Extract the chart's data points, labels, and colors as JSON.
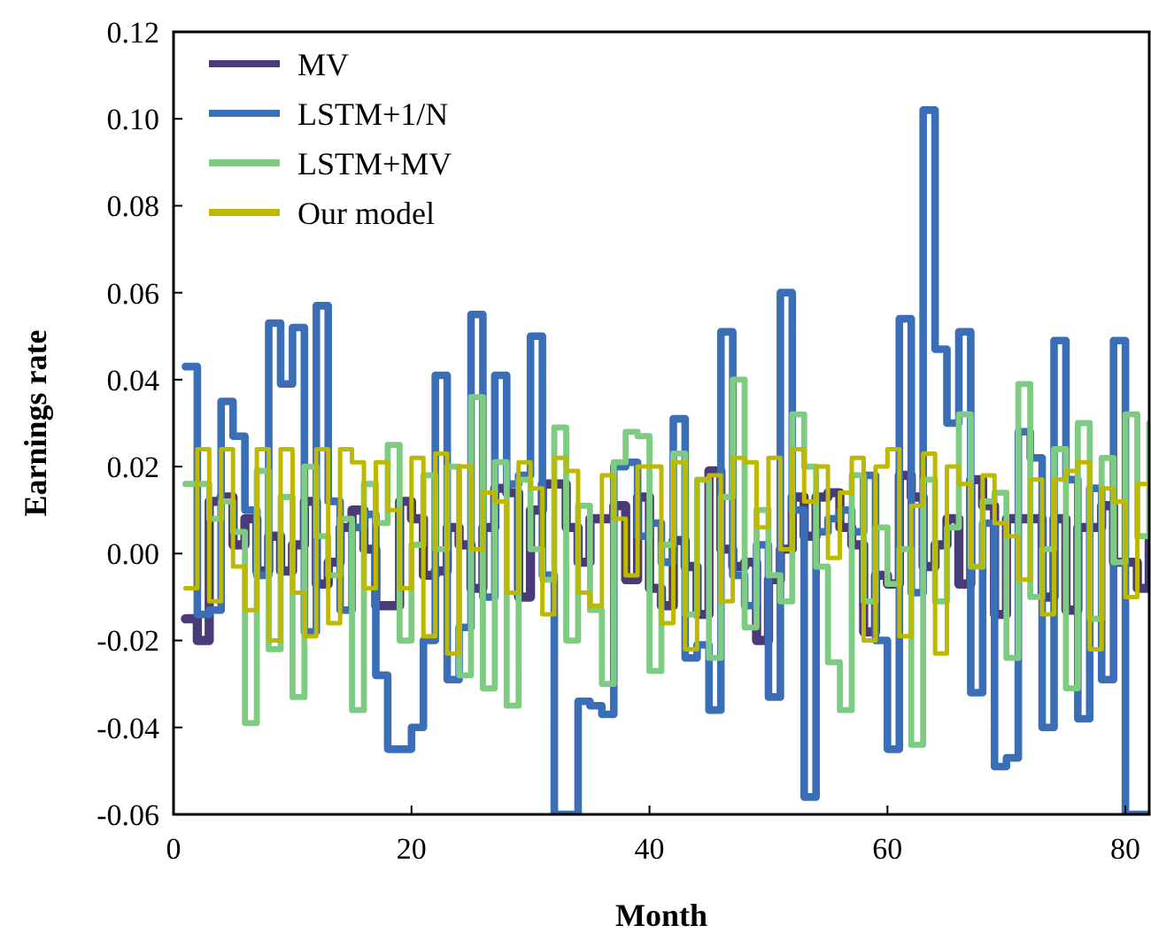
{
  "chart_data": {
    "type": "step",
    "xlabel": "Month",
    "ylabel": "Earnings rate",
    "x": [
      1,
      2,
      3,
      4,
      5,
      6,
      7,
      8,
      9,
      10,
      11,
      12,
      13,
      14,
      15,
      16,
      17,
      18,
      19,
      20,
      21,
      22,
      23,
      24,
      25,
      26,
      27,
      28,
      29,
      30,
      31,
      32,
      33,
      34,
      35,
      36,
      37,
      38,
      39,
      40,
      41,
      42,
      43,
      44,
      45,
      46,
      47,
      48,
      49,
      50,
      51,
      52,
      53,
      54,
      55,
      56,
      57,
      58,
      59,
      60,
      61,
      62,
      63,
      64,
      65,
      66,
      67,
      68,
      69,
      70,
      71,
      72,
      73,
      74,
      75,
      76,
      77,
      78,
      79,
      80,
      81,
      82
    ],
    "xlim": [
      0,
      82
    ],
    "xticks": [
      0,
      20,
      40,
      60,
      80
    ],
    "ylim": [
      -0.06,
      0.12
    ],
    "yticks": [
      {
        "value": -0.06,
        "label": "-0.06"
      },
      {
        "value": -0.04,
        "label": "-0.04"
      },
      {
        "value": -0.02,
        "label": "-0.02"
      },
      {
        "value": 0,
        "label": "0.00"
      },
      {
        "value": 0.02,
        "label": "0.02"
      },
      {
        "value": 0.04,
        "label": "0.04"
      },
      {
        "value": 0.06,
        "label": "0.06"
      },
      {
        "value": 0.08,
        "label": "0.08"
      },
      {
        "value": 0.1,
        "label": "0.10"
      },
      {
        "value": 0.12,
        "label": "0.12"
      }
    ],
    "grid": false,
    "legend": "top left",
    "line_style": "solid",
    "marker": "none",
    "series": [
      {
        "name": "MV",
        "color": "#4b3a78",
        "values": [
          -0.015,
          -0.02,
          0.012,
          0.013,
          0.002,
          0.008,
          -0.004,
          0.004,
          -0.004,
          0.002,
          0.012,
          -0.007,
          -0.002,
          0.006,
          0.01,
          0.001,
          -0.012,
          -0.012,
          0.012,
          0.008,
          -0.005,
          -0.004,
          0.006,
          0.002,
          -0.008,
          0.006,
          0.015,
          0.014,
          -0.01,
          0.01,
          0.016,
          0.016,
          0.006,
          -0.002,
          0.008,
          0.008,
          0.011,
          -0.006,
          0.013,
          -0.008,
          -0.012,
          0.003,
          -0.003,
          -0.014,
          0.019,
          0.001,
          -0.003,
          -0.002,
          -0.02,
          -0.006,
          0.001,
          0.013,
          0.004,
          0.013,
          0.014,
          0.006,
          0.002,
          -0.018,
          -0.005,
          -0.007,
          0.018,
          0.013,
          -0.003,
          0.002,
          0.008,
          -0.007,
          0.017,
          0.011,
          -0.014,
          0.008,
          0.008,
          0.008,
          -0.01,
          0.008,
          -0.013,
          0.006,
          0.006,
          0.011,
          -0.002,
          -0.002,
          -0.008,
          0.003
        ]
      },
      {
        "name": "LSTM+1/N",
        "color": "#3a6fb8",
        "values": [
          0.043,
          -0.014,
          -0.013,
          0.035,
          0.027,
          0.01,
          -0.005,
          0.053,
          0.039,
          0.052,
          -0.018,
          0.057,
          0.012,
          -0.013,
          0.006,
          0.009,
          -0.028,
          -0.045,
          -0.045,
          -0.04,
          -0.02,
          0.041,
          -0.029,
          -0.017,
          0.055,
          -0.01,
          0.041,
          0.016,
          0.018,
          0.05,
          -0.005,
          -0.06,
          -0.06,
          -0.034,
          -0.035,
          -0.037,
          0.02,
          0.021,
          0.004,
          0.007,
          -0.002,
          0.031,
          -0.024,
          -0.021,
          -0.036,
          0.051,
          -0.005,
          -0.012,
          0.002,
          -0.033,
          0.06,
          0.01,
          -0.056,
          0.005,
          0.008,
          0.01,
          0.005,
          0.018,
          -0.02,
          -0.045,
          0.054,
          -0.009,
          0.102,
          0.047,
          0.03,
          0.051,
          -0.032,
          0.007,
          -0.049,
          -0.047,
          0.028,
          0.022,
          -0.04,
          0.049,
          0.017,
          -0.038,
          0.015,
          -0.029,
          0.049,
          -0.06,
          -0.06,
          -0.06
        ]
      },
      {
        "name": "LSTM+MV",
        "color": "#7ecb82",
        "values": [
          0.016,
          0.016,
          0.008,
          0.012,
          0.005,
          -0.039,
          0.019,
          -0.022,
          0.013,
          -0.033,
          0.02,
          0.004,
          -0.005,
          0.008,
          -0.036,
          0.016,
          0.007,
          0.025,
          -0.02,
          0.002,
          0.018,
          0.001,
          0.02,
          -0.028,
          0.036,
          -0.031,
          0.021,
          -0.035,
          0.017,
          0.001,
          -0.006,
          0.029,
          -0.02,
          0.011,
          -0.013,
          -0.03,
          0.021,
          0.028,
          0.027,
          -0.027,
          0.002,
          0.023,
          -0.014,
          0.017,
          -0.024,
          0.013,
          0.04,
          -0.017,
          0.01,
          -0.005,
          -0.011,
          0.032,
          0.02,
          -0.003,
          -0.025,
          -0.036,
          0.018,
          -0.011,
          0.006,
          -0.007,
          0.001,
          -0.044,
          0.017,
          -0.011,
          0.006,
          0.032,
          -0.003,
          0.012,
          0.014,
          -0.024,
          0.039,
          -0.01,
          0.001,
          0.024,
          -0.031,
          0.03,
          -0.015,
          0.022,
          -0.002,
          0.032,
          0.004,
          0.03
        ]
      },
      {
        "name": "Our model",
        "color": "#bdb800",
        "values": [
          -0.008,
          0.024,
          -0.011,
          0.024,
          -0.003,
          -0.013,
          0.024,
          -0.02,
          0.024,
          -0.009,
          -0.019,
          0.024,
          -0.016,
          0.024,
          0.021,
          -0.008,
          0.021,
          0.01,
          -0.008,
          0.022,
          -0.019,
          0.023,
          -0.023,
          0.02,
          0.001,
          0.014,
          0.012,
          -0.009,
          0.021,
          0.015,
          -0.014,
          0.022,
          0.019,
          -0.009,
          -0.012,
          0.018,
          0.008,
          -0.005,
          0.02,
          0.02,
          -0.016,
          0.021,
          -0.022,
          0.017,
          0.018,
          -0.011,
          0.022,
          0.021,
          0.006,
          0.022,
          0.001,
          0.024,
          0.012,
          0.02,
          -0.001,
          0.014,
          0.022,
          -0.02,
          0.02,
          0.024,
          -0.019,
          0.011,
          0.023,
          -0.023,
          0.02,
          0.016,
          -0.003,
          0.018,
          0.007,
          0.004,
          -0.006,
          0.017,
          -0.014,
          0.017,
          0.019,
          0.021,
          -0.022,
          0.015,
          0.012,
          -0.01,
          0.016,
          0.016
        ]
      }
    ]
  }
}
